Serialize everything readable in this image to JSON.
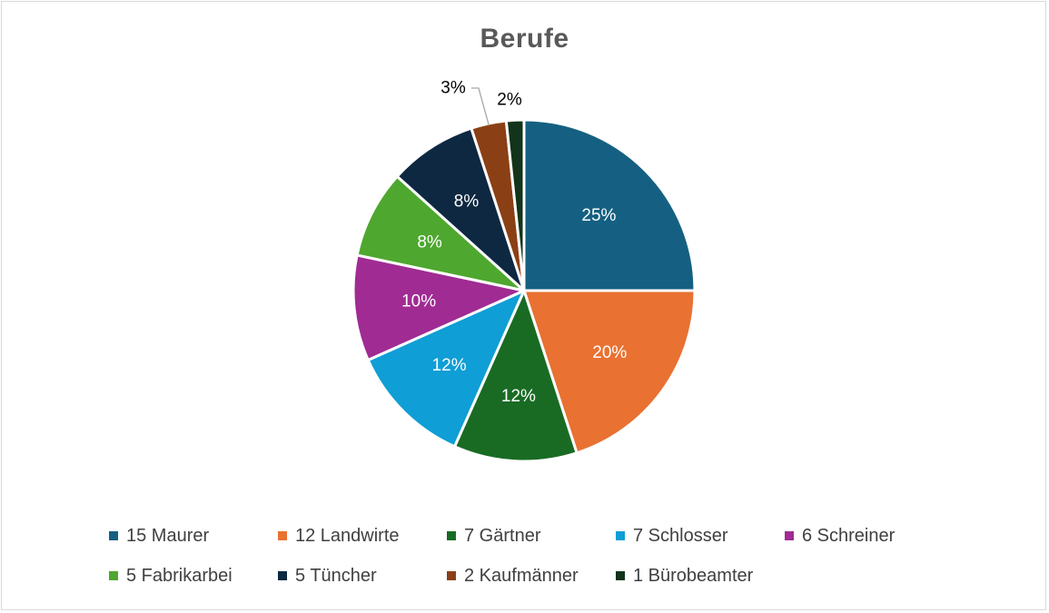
{
  "chart_data": {
    "type": "pie",
    "title": "Berufe",
    "legend_position": "bottom",
    "slices": [
      {
        "label": "15 Maurer",
        "value": 15,
        "percent_label": "25%",
        "color": "#156082",
        "label_color": "#ffffff"
      },
      {
        "label": "12 Landwirte",
        "value": 12,
        "percent_label": "20%",
        "color": "#E97132",
        "label_color": "#ffffff"
      },
      {
        "label": "7 Gärtner",
        "value": 7,
        "percent_label": "12%",
        "color": "#196B24",
        "label_color": "#ffffff"
      },
      {
        "label": "7 Schlosser",
        "value": 7,
        "percent_label": "12%",
        "color": "#0F9ED5",
        "label_color": "#ffffff"
      },
      {
        "label": "6 Schreiner",
        "value": 6,
        "percent_label": "10%",
        "color": "#A02B93",
        "label_color": "#ffffff"
      },
      {
        "label": "5 Fabrikarbei",
        "value": 5,
        "percent_label": "8%",
        "color": "#4EA72E",
        "label_color": "#ffffff"
      },
      {
        "label": "5 Tüncher",
        "value": 5,
        "percent_label": "8%",
        "color": "#0E2841",
        "label_color": "#ffffff"
      },
      {
        "label": "2 Kaufmänner",
        "value": 2,
        "percent_label": "3%",
        "color": "#8B3F14",
        "label_color": "#000000",
        "outside": true
      },
      {
        "label": "1 Bürobeamter",
        "value": 1,
        "percent_label": "2%",
        "color": "#12341A",
        "label_color": "#000000",
        "outside": true
      }
    ]
  }
}
